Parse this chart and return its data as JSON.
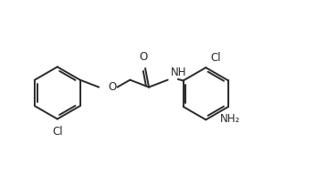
{
  "bg_color": "#ffffff",
  "line_color": "#2b2b2b",
  "line_width": 1.4,
  "font_size": 8.5,
  "figsize": [
    3.46,
    1.92
  ],
  "dpi": 100,
  "xlim": [
    0,
    8.65
  ],
  "ylim": [
    0,
    4.8
  ]
}
